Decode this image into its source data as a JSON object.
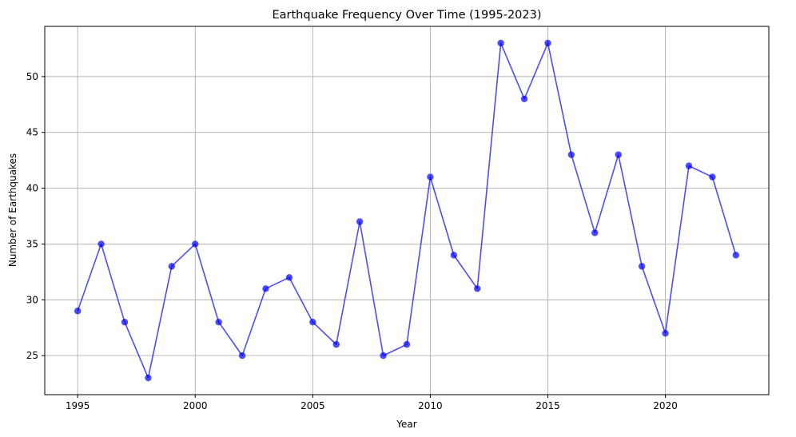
{
  "chart_data": {
    "type": "line",
    "title": "Earthquake Frequency Over Time (1995-2023)",
    "xlabel": "Year",
    "ylabel": "Number of Earthquakes",
    "x": [
      1995,
      1996,
      1997,
      1998,
      1999,
      2000,
      2001,
      2002,
      2003,
      2004,
      2005,
      2006,
      2007,
      2008,
      2009,
      2010,
      2011,
      2012,
      2013,
      2014,
      2015,
      2016,
      2017,
      2018,
      2019,
      2020,
      2021,
      2022,
      2023
    ],
    "series": [
      {
        "values": [
          29,
          35,
          28,
          23,
          33,
          35,
          28,
          25,
          31,
          32,
          28,
          26,
          37,
          25,
          26,
          41,
          34,
          31,
          53,
          48,
          53,
          43,
          36,
          43,
          33,
          27,
          42,
          41,
          34
        ],
        "color": "#0000ff",
        "marker": "circle"
      }
    ],
    "xticks": [
      1995,
      2000,
      2005,
      2010,
      2015,
      2020
    ],
    "yticks": [
      25,
      30,
      35,
      40,
      45,
      50
    ],
    "xlim": [
      1993.6,
      2024.4
    ],
    "ylim": [
      21.5,
      54.5
    ],
    "grid": true
  }
}
